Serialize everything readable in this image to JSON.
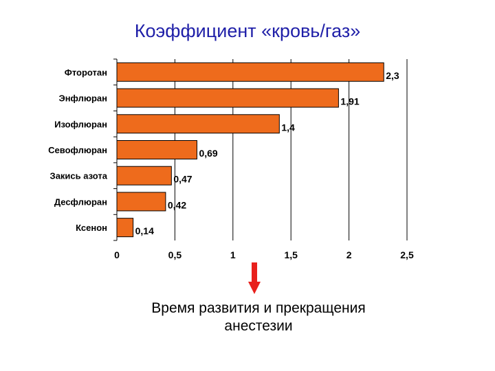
{
  "title": "Коэффициент «кровь/газ»",
  "chart_data": {
    "type": "bar",
    "orientation": "horizontal",
    "categories": [
      "Фторотан",
      "Энфлюран",
      "Изофлюран",
      "Севофлюран",
      "Закись азота",
      "Десфлюран",
      "Ксенон"
    ],
    "values": [
      2.3,
      1.91,
      1.4,
      0.69,
      0.47,
      0.42,
      0.14
    ],
    "value_labels": [
      "2,3",
      "1,91",
      "1,4",
      "0,69",
      "0,47",
      "0,42",
      "0,14"
    ],
    "xlim": [
      0,
      2.5
    ],
    "x_ticks": [
      0,
      0.5,
      1,
      1.5,
      2,
      2.5
    ],
    "x_tick_labels": [
      "0",
      "0,5",
      "1",
      "1,5",
      "2",
      "2,5"
    ],
    "grid": "vertical",
    "bar_color": "#ee6b1c",
    "bar_edge_color": "#000000",
    "title": "Коэффициент «кровь/газ»",
    "xlabel": "",
    "ylabel": ""
  },
  "arrow_color": "#e8201c",
  "caption": {
    "line1": "Время развития и прекращения",
    "line2": "анестезии"
  }
}
